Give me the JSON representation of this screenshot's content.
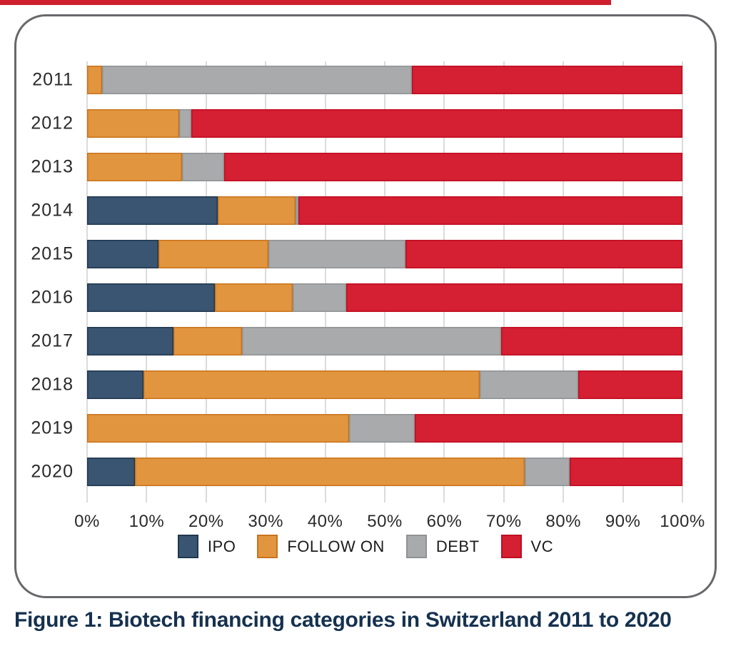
{
  "caption": "Figure 1: Biotech financing categories in Switzerland 2011 to 2020",
  "colors": {
    "top_strip": "#CE1F2E",
    "card_border": "#66686B",
    "gridline": "#DBDBDB",
    "axis_text": "#2B2A29",
    "caption_text": "#15314E"
  },
  "chart_data": {
    "type": "bar",
    "orientation": "horizontal",
    "stacked": true,
    "units": "percent",
    "title": "",
    "xlabel": "",
    "ylabel": "",
    "xlim": [
      0,
      100
    ],
    "grid": "vertical",
    "legend_position": "bottom",
    "categories": [
      "2011",
      "2012",
      "2013",
      "2014",
      "2015",
      "2016",
      "2017",
      "2018",
      "2019",
      "2020"
    ],
    "x_ticks": [
      "0%",
      "10%",
      "20%",
      "30%",
      "40%",
      "50%",
      "60%",
      "70%",
      "80%",
      "90%",
      "100%"
    ],
    "series": [
      {
        "name": "IPO",
        "color": "#3A5571",
        "border_color": "#20374F",
        "values": [
          0,
          0,
          0,
          22,
          12,
          21.5,
          14.5,
          9.5,
          0,
          8
        ]
      },
      {
        "name": "FOLLOW ON",
        "color": "#E2953F",
        "border_color": "#C9731B",
        "values": [
          2.5,
          15.5,
          16,
          13,
          18.5,
          13,
          11.5,
          56.5,
          44,
          65.5
        ]
      },
      {
        "name": "DEBT",
        "color": "#A8AAAC",
        "border_color": "#8F9294",
        "values": [
          52,
          2,
          7,
          0.5,
          23,
          9,
          43.5,
          16.5,
          11,
          7.5
        ]
      },
      {
        "name": "VC",
        "color": "#D51F32",
        "border_color": "#C00D21",
        "values": [
          45.5,
          82.5,
          77,
          64.5,
          46.5,
          56.5,
          30.5,
          17.5,
          45,
          19
        ]
      }
    ]
  }
}
